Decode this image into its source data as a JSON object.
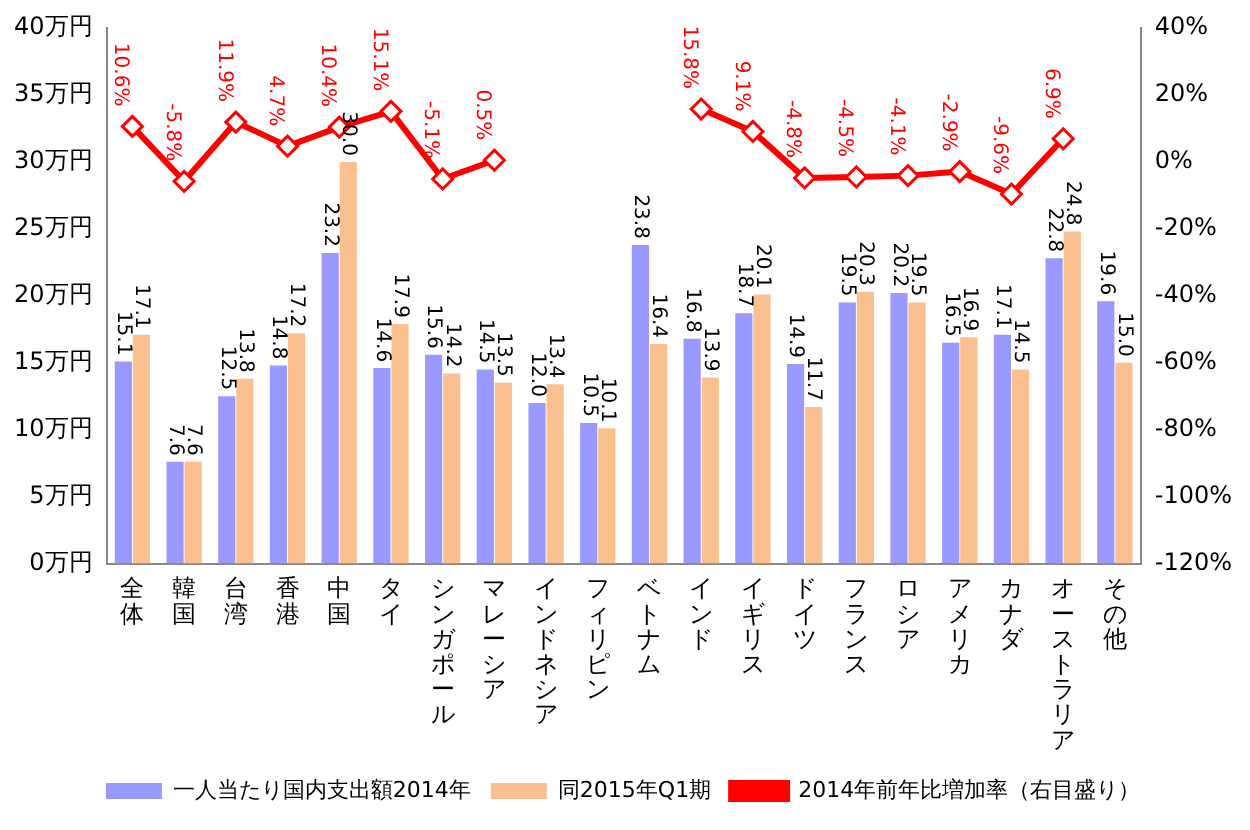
{
  "chart_data": {
    "type": "bar",
    "categories": [
      "全体",
      "韓国",
      "台湾",
      "香港",
      "中国",
      "タイ",
      "シンガポール",
      "マレーシア",
      "インドネシア",
      "フィリピン",
      "ベトナム",
      "インド",
      "イギリス",
      "ドイツ",
      "フランス",
      "ロシア",
      "アメリカ",
      "カナダ",
      "オーストラリア",
      "その他"
    ],
    "series": [
      {
        "name": "一人当たり国内支出額2014年",
        "color": "#9999ff",
        "values": [
          15.1,
          7.6,
          12.5,
          14.8,
          23.2,
          14.6,
          15.6,
          14.5,
          12.0,
          10.5,
          23.8,
          16.8,
          18.7,
          14.9,
          19.5,
          20.2,
          16.5,
          17.1,
          22.8,
          19.6
        ],
        "value_labels": [
          "15.1",
          "7.6",
          "12.5",
          "14.8",
          "23.2",
          "14.6",
          "15.6",
          "14.5",
          "12.0",
          "10.5",
          "23.8",
          "16.8",
          "18.7",
          "14.9",
          "19.5",
          "20.2",
          "16.5",
          "17.1",
          "22.8",
          "19.6"
        ]
      },
      {
        "name": "同2015年Q1期",
        "color": "#fac090",
        "values": [
          17.1,
          7.6,
          13.8,
          17.2,
          30.0,
          17.9,
          14.2,
          13.5,
          13.4,
          10.1,
          16.4,
          13.9,
          20.1,
          11.7,
          20.3,
          19.5,
          16.9,
          14.5,
          24.8,
          15.0
        ],
        "value_labels": [
          "17.1",
          "7.6",
          "13.8",
          "17.2",
          "30.0",
          "17.9",
          "14.2",
          "13.5",
          "13.4",
          "10.1",
          "16.4",
          "13.9",
          "20.1",
          "11.7",
          "20.3",
          "19.5",
          "16.9",
          "14.5",
          "24.8",
          "15.0"
        ]
      },
      {
        "name": "2014年前年比増加率（右目盛り）",
        "type": "line",
        "axis": "y2",
        "color": "#ff0000",
        "marker": "diamond",
        "line_style": "solid",
        "values": [
          10.6,
          -5.8,
          11.9,
          4.7,
          10.4,
          15.1,
          -5.1,
          0.5,
          null,
          null,
          null,
          15.8,
          9.1,
          -4.8,
          -4.5,
          -4.1,
          -2.9,
          -9.6,
          6.9,
          null
        ],
        "value_labels": [
          "10.6%",
          "-5.8%",
          "11.9%",
          "4.7%",
          "10.4%",
          "15.1%",
          "-5.1%",
          "0.5%",
          null,
          null,
          null,
          "15.8%",
          "9.1%",
          "-4.8%",
          "-4.5%",
          "-4.1%",
          "-2.9%",
          "-9.6%",
          "6.9%",
          null
        ]
      }
    ],
    "ylim": [
      0,
      40
    ],
    "yticks": [
      {
        "value": 0,
        "label": "0万円"
      },
      {
        "value": 5,
        "label": "5万円"
      },
      {
        "value": 10,
        "label": "10万円"
      },
      {
        "value": 15,
        "label": "15万円"
      },
      {
        "value": 20,
        "label": "20万円"
      },
      {
        "value": 25,
        "label": "25万円"
      },
      {
        "value": 30,
        "label": "30万円"
      },
      {
        "value": 35,
        "label": "35万円"
      },
      {
        "value": 40,
        "label": "40万円"
      }
    ],
    "y2lim": [
      -120,
      40
    ],
    "y2ticks": [
      {
        "value": -120,
        "label": "-120%"
      },
      {
        "value": -100,
        "label": "-100%"
      },
      {
        "value": -80,
        "label": "-80%"
      },
      {
        "value": -60,
        "label": "-60%"
      },
      {
        "value": -40,
        "label": "-40%"
      },
      {
        "value": -20,
        "label": "-20%"
      },
      {
        "value": 0,
        "label": "0%"
      },
      {
        "value": 20,
        "label": "20%"
      },
      {
        "value": 40,
        "label": "40%"
      }
    ],
    "grid": false,
    "legend": "bottom"
  }
}
